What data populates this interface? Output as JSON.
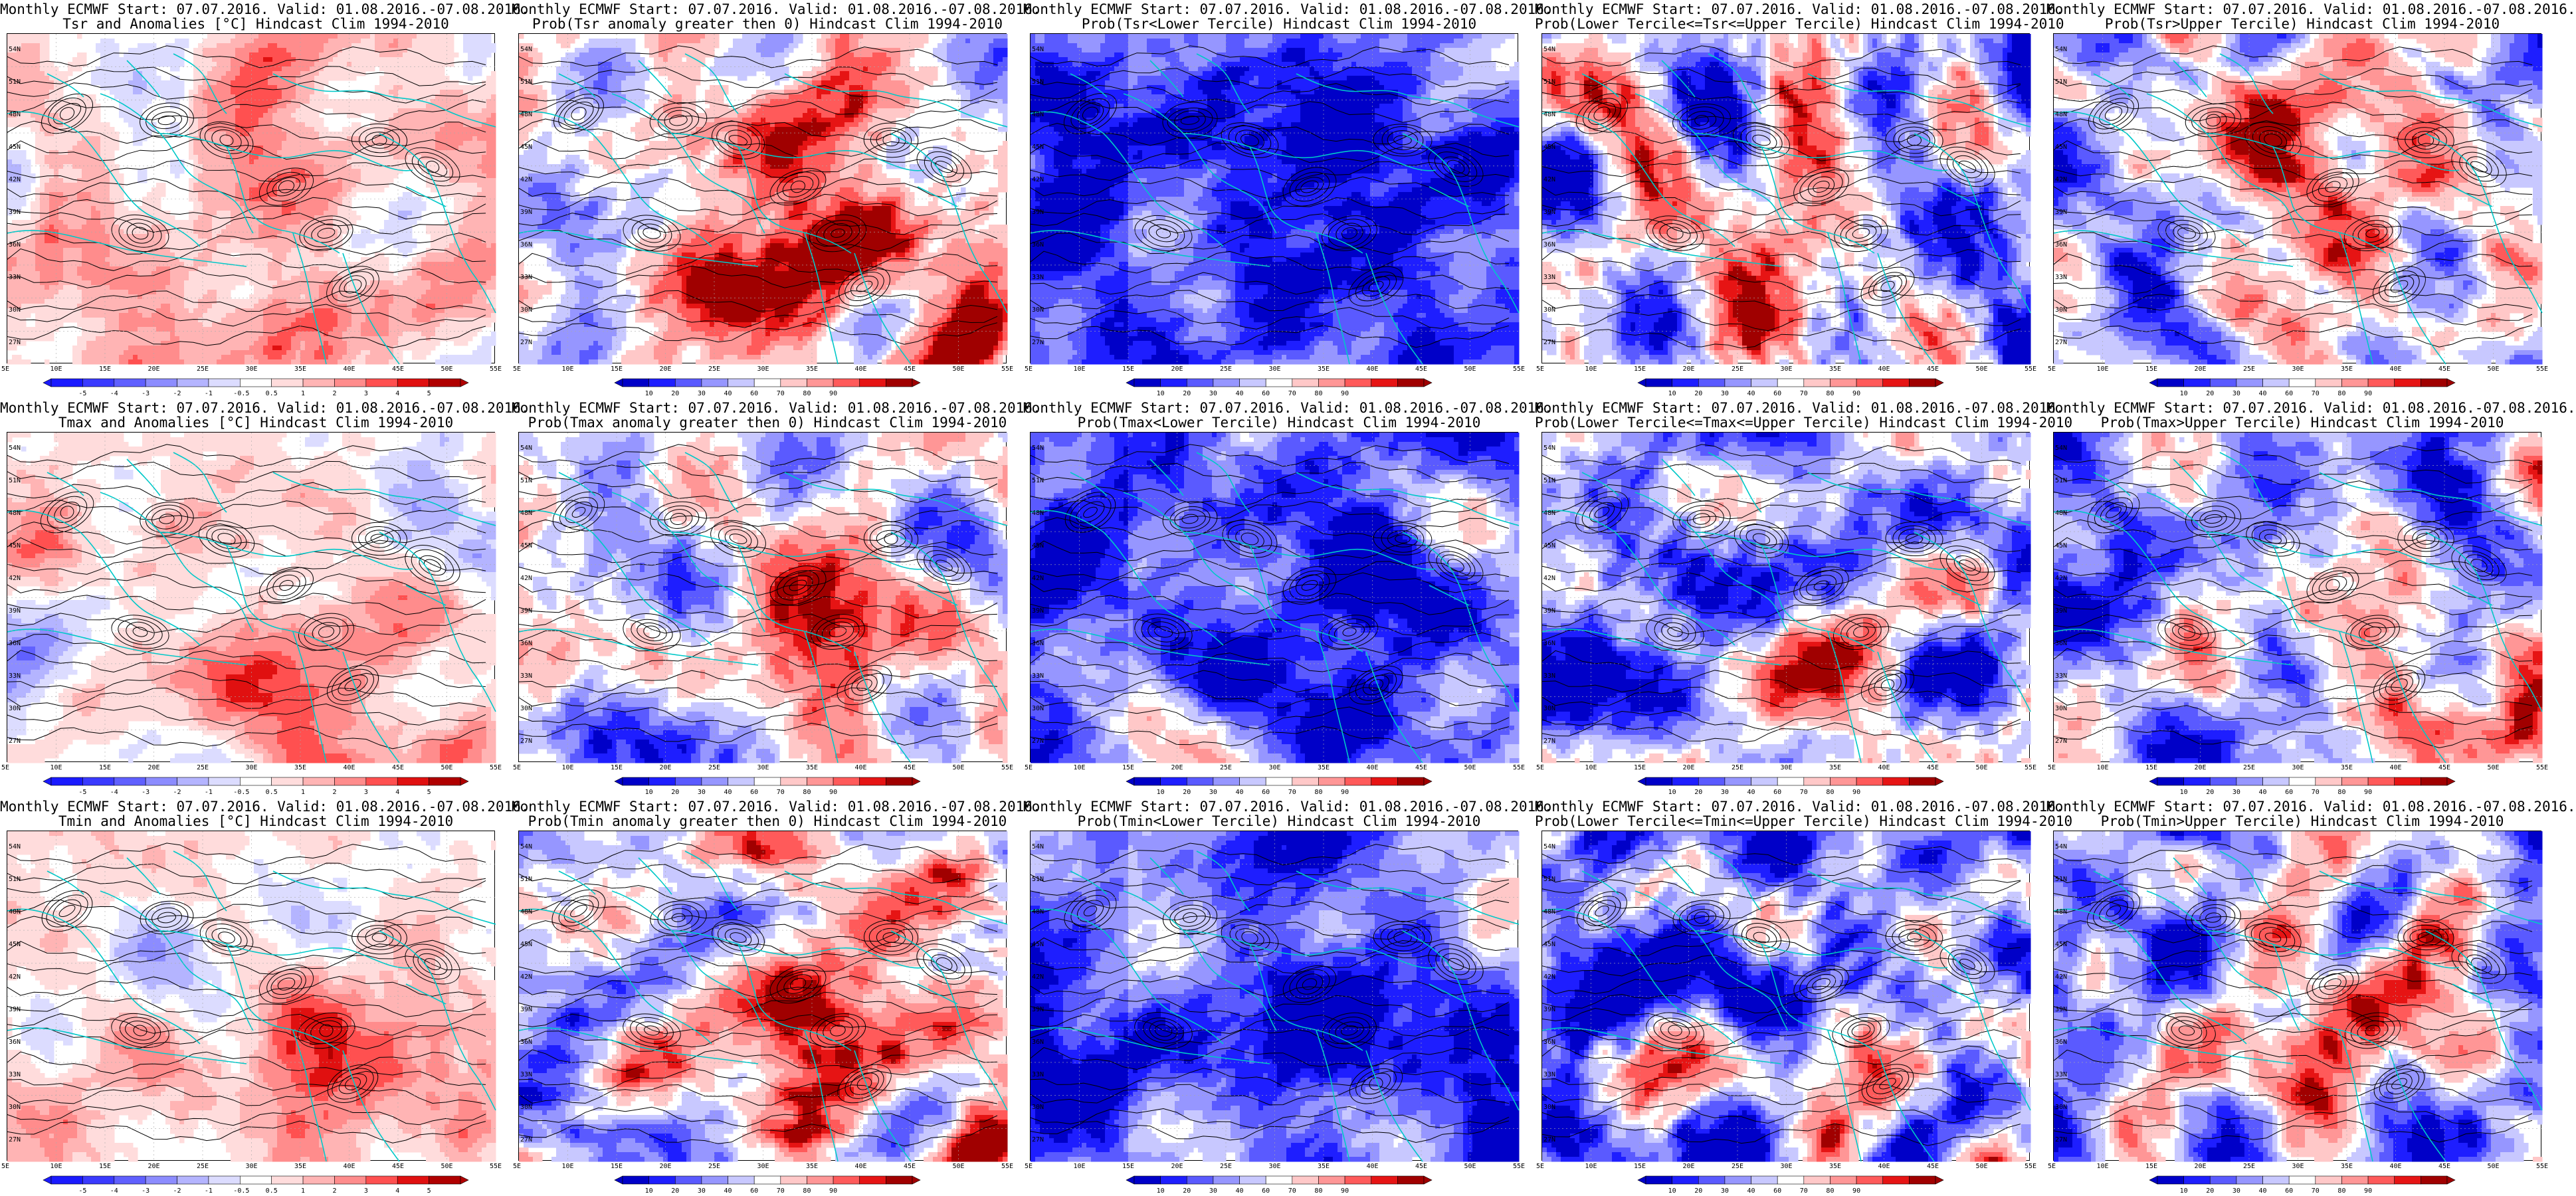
{
  "header_common": "Monthly ECMWF Start: 07.07.2016. Valid: 01.08.2016.-07.08.2016.",
  "panels": [
    {
      "row": 0,
      "col": 0,
      "kind": "anom",
      "title1": "Monthly ECMWF Start: 07.07.2016. Valid: 01.08.2016.-07.08.2016.",
      "title2": "Tsr and Anomalies [°C] Hindcast Clim 1994-2010"
    },
    {
      "row": 0,
      "col": 1,
      "kind": "probpos",
      "title1": "Monthly ECMWF Start: 07.07.2016. Valid: 01.08.2016.-07.08.2016.",
      "title2": "Prob(Tsr anomaly greater then 0) Hindcast Clim 1994-2010"
    },
    {
      "row": 0,
      "col": 2,
      "kind": "lower",
      "title1": "Monthly ECMWF Start: 07.07.2016. Valid: 01.08.2016.-07.08.2016.",
      "title2": "Prob(Tsr<Lower Tercile) Hindcast Clim 1994-2010"
    },
    {
      "row": 0,
      "col": 3,
      "kind": "middle",
      "title1": "Monthly ECMWF Start: 07.07.2016. Valid: 01.08.2016.-07.08.2016.",
      "title2": "Prob(Lower Tercile<=Tsr<=Upper Tercile) Hindcast Clim 1994-2010"
    },
    {
      "row": 0,
      "col": 4,
      "kind": "upper",
      "title1": "Monthly ECMWF Start: 07.07.2016. Valid: 01.08.2016.-07.08.2016.",
      "title2": "Prob(Tsr>Upper Tercile) Hindcast Clim 1994-2010"
    },
    {
      "row": 1,
      "col": 0,
      "kind": "anom",
      "title1": "Monthly ECMWF Start: 07.07.2016. Valid: 01.08.2016.-07.08.2016.",
      "title2": "Tmax and Anomalies [°C] Hindcast Clim 1994-2010"
    },
    {
      "row": 1,
      "col": 1,
      "kind": "probpos",
      "title1": "Monthly ECMWF Start: 07.07.2016. Valid: 01.08.2016.-07.08.2016.",
      "title2": "Prob(Tmax anomaly greater then 0) Hindcast Clim 1994-2010"
    },
    {
      "row": 1,
      "col": 2,
      "kind": "lower",
      "title1": "Monthly ECMWF Start: 07.07.2016. Valid: 01.08.2016.-07.08.2016.",
      "title2": "Prob(Tmax<Lower Tercile) Hindcast Clim 1994-2010"
    },
    {
      "row": 1,
      "col": 3,
      "kind": "middle",
      "title1": "Monthly ECMWF Start: 07.07.2016. Valid: 01.08.2016.-07.08.2016.",
      "title2": "Prob(Lower Tercile<=Tmax<=Upper Tercile) Hindcast Clim 1994-2010"
    },
    {
      "row": 1,
      "col": 4,
      "kind": "upper",
      "title1": "Monthly ECMWF Start: 07.07.2016. Valid: 01.08.2016.-07.08.2016.",
      "title2": "Prob(Tmax>Upper Tercile) Hindcast Clim 1994-2010"
    },
    {
      "row": 2,
      "col": 0,
      "kind": "anom",
      "title1": "Monthly ECMWF Start: 07.07.2016. Valid: 01.08.2016.-07.08.2016.",
      "title2": "Tmin and Anomalies [°C] Hindcast Clim 1994-2010"
    },
    {
      "row": 2,
      "col": 1,
      "kind": "probpos",
      "title1": "Monthly ECMWF Start: 07.07.2016. Valid: 01.08.2016.-07.08.2016.",
      "title2": "Prob(Tmin anomaly greater then 0) Hindcast Clim 1994-2010"
    },
    {
      "row": 2,
      "col": 2,
      "kind": "lower",
      "title1": "Monthly ECMWF Start: 07.07.2016. Valid: 01.08.2016.-07.08.2016.",
      "title2": "Prob(Tmin<Lower Tercile) Hindcast Clim 1994-2010"
    },
    {
      "row": 2,
      "col": 3,
      "kind": "middle",
      "title1": "Monthly ECMWF Start: 07.07.2016. Valid: 01.08.2016.-07.08.2016.",
      "title2": "Prob(Lower Tercile<=Tmin<=Upper Tercile) Hindcast Clim 1994-2010"
    },
    {
      "row": 2,
      "col": 4,
      "kind": "upper",
      "title1": "Monthly ECMWF Start: 07.07.2016. Valid: 01.08.2016.-07.08.2016.",
      "title2": "Prob(Tmin>Upper Tercile) Hindcast Clim 1994-2010"
    }
  ],
  "lat_labels": [
    "54N",
    "51N",
    "48N",
    "45N",
    "42N",
    "39N",
    "36N",
    "33N",
    "30N",
    "27N"
  ],
  "lon_labels": [
    "5E",
    "10E",
    "15E",
    "20E",
    "25E",
    "30E",
    "35E",
    "40E",
    "45E",
    "50E",
    "55E"
  ],
  "colorbar_anom_labels": [
    "-5",
    "-4",
    "-3",
    "-2",
    "-1",
    "-0.5",
    "0.5",
    "1",
    "2",
    "3",
    "4",
    "5"
  ],
  "colorbar_prob_labels": [
    "10",
    "20",
    "30",
    "40",
    "60",
    "70",
    "80",
    "90"
  ],
  "colors": {
    "coast": "#00c8c8",
    "contour": "#000000",
    "anom_scale": [
      "#1a1aff",
      "#3a3aff",
      "#6060ff",
      "#8c8cff",
      "#b4b4ff",
      "#dcdcff",
      "#ffffff",
      "#ffdcdc",
      "#ffb4b4",
      "#ff8c8c",
      "#ff5050",
      "#e01010",
      "#b00000"
    ],
    "prob_scale": [
      "#0000c8",
      "#1e1eff",
      "#5a5aff",
      "#9696ff",
      "#c8c8ff",
      "#ffffff",
      "#ffc8c8",
      "#ff9696",
      "#ff5a5a",
      "#e61414",
      "#a00000"
    ]
  }
}
